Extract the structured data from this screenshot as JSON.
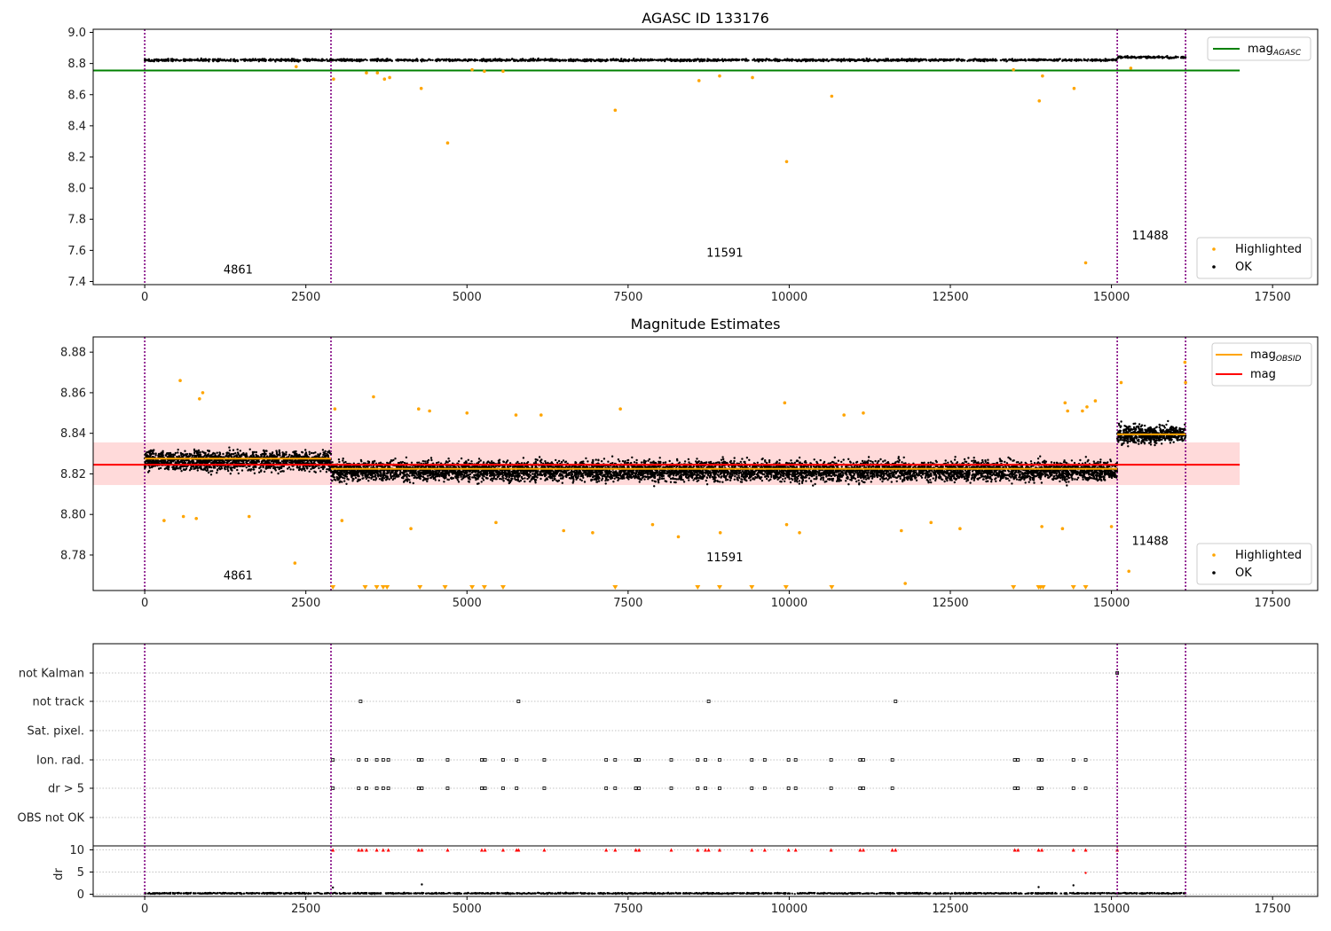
{
  "chart_data": [
    {
      "type": "scatter",
      "title": "AGASC ID 133176",
      "xlim": [
        -800,
        18200
      ],
      "ylim": [
        7.38,
        9.02
      ],
      "xticks": [
        0,
        2500,
        5000,
        7500,
        10000,
        12500,
        15000,
        17500
      ],
      "xtick_labels": [
        "0",
        "2500",
        "5000",
        "7500",
        "10000",
        "12500",
        "15000",
        "17500"
      ],
      "yticks": [
        7.4,
        7.6,
        7.8,
        8.0,
        8.2,
        8.4,
        8.6,
        8.8,
        9.0
      ],
      "ytick_labels": [
        "7.4",
        "7.6",
        "7.8",
        "8.0",
        "8.2",
        "8.4",
        "8.6",
        "8.8",
        "9.0"
      ],
      "obsid_boundaries": [
        0,
        2890,
        15090,
        16150
      ],
      "obsid_labels": [
        {
          "text": "4861",
          "x": 1450,
          "y": 7.45
        },
        {
          "text": "11591",
          "x": 9000,
          "y": 7.56
        },
        {
          "text": "11488",
          "x": 15600,
          "y": 7.67
        }
      ],
      "mag_agasc": 8.755,
      "mag_agasc_range": [
        -800,
        16990
      ],
      "ok_band": [
        {
          "x0": 0,
          "x1": 15090,
          "center": 8.822,
          "spread": 0.014
        },
        {
          "x0": 15090,
          "x1": 16150,
          "center": 8.84,
          "spread": 0.014
        }
      ],
      "highlighted_points": [
        {
          "x": 2350,
          "y": 8.78
        },
        {
          "x": 2930,
          "y": 8.7
        },
        {
          "x": 3440,
          "y": 8.74
        },
        {
          "x": 3610,
          "y": 8.74
        },
        {
          "x": 3720,
          "y": 8.7
        },
        {
          "x": 3800,
          "y": 8.71
        },
        {
          "x": 4290,
          "y": 8.64
        },
        {
          "x": 4700,
          "y": 8.29
        },
        {
          "x": 5080,
          "y": 8.76
        },
        {
          "x": 5270,
          "y": 8.75
        },
        {
          "x": 5560,
          "y": 8.75
        },
        {
          "x": 7300,
          "y": 8.5
        },
        {
          "x": 8600,
          "y": 8.69
        },
        {
          "x": 8920,
          "y": 8.72
        },
        {
          "x": 9430,
          "y": 8.71
        },
        {
          "x": 9960,
          "y": 8.17
        },
        {
          "x": 10660,
          "y": 8.59
        },
        {
          "x": 13480,
          "y": 8.76
        },
        {
          "x": 13880,
          "y": 8.56
        },
        {
          "x": 13930,
          "y": 8.72
        },
        {
          "x": 14420,
          "y": 8.64
        },
        {
          "x": 14600,
          "y": 7.52
        },
        {
          "x": 15300,
          "y": 8.77
        }
      ],
      "legend_lines": [
        {
          "label_main": "mag",
          "label_sub": "AGASC",
          "color": "#008000"
        }
      ],
      "legend_points": [
        {
          "label": "Highlighted",
          "color": "#ffa500"
        },
        {
          "label": "OK",
          "color": "#000000"
        }
      ]
    },
    {
      "type": "scatter",
      "title": "Magnitude Estimates",
      "xlim": [
        -800,
        18200
      ],
      "ylim": [
        8.7625,
        8.8875
      ],
      "xticks": [
        0,
        2500,
        5000,
        7500,
        10000,
        12500,
        15000,
        17500
      ],
      "xtick_labels": [
        "0",
        "2500",
        "5000",
        "7500",
        "10000",
        "12500",
        "15000",
        "17500"
      ],
      "yticks": [
        8.78,
        8.8,
        8.82,
        8.84,
        8.86,
        8.88
      ],
      "ytick_labels": [
        "8.78",
        "8.80",
        "8.82",
        "8.84",
        "8.86",
        "8.88"
      ],
      "obsid_boundaries": [
        0,
        2890,
        15090,
        16150
      ],
      "obsid_labels": [
        {
          "text": "4861",
          "x": 1450,
          "y": 8.768
        },
        {
          "text": "11591",
          "x": 9000,
          "y": 8.777
        },
        {
          "text": "11488",
          "x": 15600,
          "y": 8.785
        }
      ],
      "mag": 8.8245,
      "mag_band": [
        8.8145,
        8.8355
      ],
      "mag_range": [
        -800,
        16990
      ],
      "mag_obsid": [
        {
          "x0": 0,
          "x1": 2890,
          "y": 8.8275
        },
        {
          "x0": 2890,
          "x1": 15090,
          "y": 8.8225
        },
        {
          "x0": 15090,
          "x1": 16150,
          "y": 8.8395
        }
      ],
      "ok_band": [
        {
          "x0": 0,
          "x1": 2890,
          "center": 8.8265,
          "spread": 0.0095
        },
        {
          "x0": 2890,
          "x1": 15090,
          "center": 8.8215,
          "spread": 0.0095
        },
        {
          "x0": 15090,
          "x1": 16150,
          "center": 8.8395,
          "spread": 0.0085
        }
      ],
      "highlighted_points": [
        {
          "x": 300,
          "y": 8.797
        },
        {
          "x": 550,
          "y": 8.866
        },
        {
          "x": 600,
          "y": 8.799
        },
        {
          "x": 800,
          "y": 8.798
        },
        {
          "x": 850,
          "y": 8.857
        },
        {
          "x": 900,
          "y": 8.86
        },
        {
          "x": 1620,
          "y": 8.799
        },
        {
          "x": 2330,
          "y": 8.776
        },
        {
          "x": 2950,
          "y": 8.852
        },
        {
          "x": 3060,
          "y": 8.797
        },
        {
          "x": 3550,
          "y": 8.858
        },
        {
          "x": 4130,
          "y": 8.793
        },
        {
          "x": 4250,
          "y": 8.852
        },
        {
          "x": 4420,
          "y": 8.851
        },
        {
          "x": 5000,
          "y": 8.85
        },
        {
          "x": 5450,
          "y": 8.796
        },
        {
          "x": 5760,
          "y": 8.849
        },
        {
          "x": 6150,
          "y": 8.849
        },
        {
          "x": 6500,
          "y": 8.792
        },
        {
          "x": 6950,
          "y": 8.791
        },
        {
          "x": 7380,
          "y": 8.852
        },
        {
          "x": 7880,
          "y": 8.795
        },
        {
          "x": 8280,
          "y": 8.789
        },
        {
          "x": 8930,
          "y": 8.791
        },
        {
          "x": 9930,
          "y": 8.855
        },
        {
          "x": 9960,
          "y": 8.795
        },
        {
          "x": 10160,
          "y": 8.791
        },
        {
          "x": 10850,
          "y": 8.849
        },
        {
          "x": 11150,
          "y": 8.85
        },
        {
          "x": 11740,
          "y": 8.792
        },
        {
          "x": 11800,
          "y": 8.766
        },
        {
          "x": 12200,
          "y": 8.796
        },
        {
          "x": 12650,
          "y": 8.793
        },
        {
          "x": 13920,
          "y": 8.794
        },
        {
          "x": 14240,
          "y": 8.793
        },
        {
          "x": 14280,
          "y": 8.855
        },
        {
          "x": 14320,
          "y": 8.851
        },
        {
          "x": 14550,
          "y": 8.851
        },
        {
          "x": 14620,
          "y": 8.853
        },
        {
          "x": 14750,
          "y": 8.856
        },
        {
          "x": 15000,
          "y": 8.794
        },
        {
          "x": 15150,
          "y": 8.865
        },
        {
          "x": 15270,
          "y": 8.772
        },
        {
          "x": 16140,
          "y": 8.875
        },
        {
          "x": 16150,
          "y": 8.865
        }
      ],
      "below_axis_markers": [
        2920,
        3420,
        3600,
        3700,
        3760,
        4270,
        4660,
        5080,
        5270,
        5560,
        7300,
        8580,
        8920,
        9420,
        9950,
        10660,
        13480,
        13870,
        13900,
        13940,
        14410,
        14600
      ],
      "legend_lines": [
        {
          "label_main": "mag",
          "label_sub": "OBSID",
          "color": "#ffa500"
        },
        {
          "label_main": "mag",
          "label_sub": "",
          "color": "#ff0000"
        }
      ],
      "legend_points": [
        {
          "label": "Highlighted",
          "color": "#ffa500"
        },
        {
          "label": "OK",
          "color": "#000000"
        }
      ]
    },
    {
      "type": "scatter",
      "title": "",
      "xlim": [
        -800,
        18200
      ],
      "xticks": [
        0,
        2500,
        5000,
        7500,
        10000,
        12500,
        15000,
        17500
      ],
      "xtick_labels": [
        "0",
        "2500",
        "5000",
        "7500",
        "10000",
        "12500",
        "15000",
        "17500"
      ],
      "flag_rows": [
        "not Kalman",
        "not track",
        "Sat. pixel.",
        "Ion. rad.",
        "dr > 5",
        "OBS not OK"
      ],
      "flags": {
        "not Kalman": [
          15090
        ],
        "not track": [
          3350,
          5800,
          8750,
          11650
        ],
        "Sat. pixel.": [],
        "Ion. rad.": [
          2920,
          3320,
          3440,
          3600,
          3700,
          3780,
          4250,
          4300,
          4700,
          5230,
          5280,
          5560,
          5770,
          6200,
          7160,
          7300,
          7620,
          7670,
          8170,
          8580,
          8700,
          8920,
          9420,
          9620,
          9990,
          10100,
          10650,
          11100,
          11150,
          11600,
          13500,
          13550,
          13870,
          13920,
          14410,
          14600
        ],
        "dr > 5": [
          2920,
          3320,
          3440,
          3600,
          3700,
          3780,
          4250,
          4300,
          4700,
          5230,
          5280,
          5560,
          5770,
          6200,
          7160,
          7300,
          7620,
          7670,
          8170,
          8580,
          8700,
          8920,
          9420,
          9620,
          9990,
          10100,
          10650,
          11100,
          11150,
          11600,
          13500,
          13550,
          13870,
          13920,
          14410,
          14600
        ],
        "OBS not OK": []
      },
      "dr_ylim": [
        -0.5,
        10.5
      ],
      "dr_yticks": [
        0,
        5,
        10
      ],
      "dr_ytick_labels": [
        "0",
        "5",
        "10"
      ],
      "dr_ylabel": "dr",
      "dr_capped": [
        2920,
        3320,
        3370,
        3440,
        3600,
        3700,
        3780,
        4250,
        4300,
        4700,
        5230,
        5280,
        5560,
        5770,
        5800,
        6200,
        7160,
        7300,
        7620,
        7670,
        8170,
        8580,
        8700,
        8750,
        8920,
        9420,
        9620,
        9990,
        10100,
        10650,
        11100,
        11150,
        11600,
        11650,
        13500,
        13550,
        13870,
        13920,
        14410,
        14600,
        15090
      ],
      "dr_extra_points": [
        {
          "x": 4300,
          "y": 2.2,
          "color": "#000000"
        },
        {
          "x": 2920,
          "y": 1.5,
          "color": "#000000"
        },
        {
          "x": 13870,
          "y": 1.6,
          "color": "#000000"
        },
        {
          "x": 14410,
          "y": 2.0,
          "color": "#000000"
        },
        {
          "x": 14600,
          "y": 4.8,
          "color": "#ff0000"
        }
      ],
      "dr_baseline": {
        "center": 0.2,
        "spread": 0.25,
        "x0": 0,
        "x1": 16150
      }
    }
  ],
  "colors": {
    "ok": "#000000",
    "highlighted": "#ffa500",
    "agasc": "#008000",
    "mag": "#ff0000",
    "mag_obsid": "#ffa500",
    "mag_band": "#ffdada",
    "boundary": "#800080",
    "grid": "#b0b0b0",
    "dr_capped": "#ff0000"
  }
}
